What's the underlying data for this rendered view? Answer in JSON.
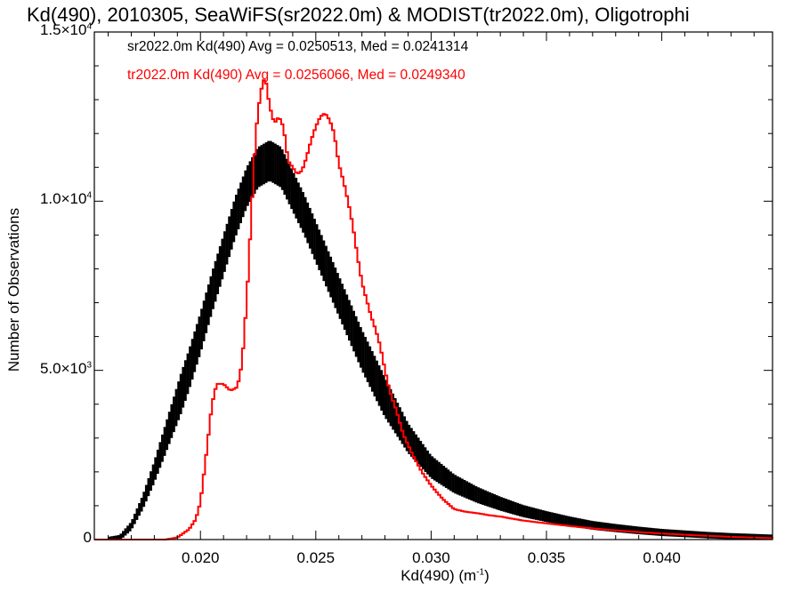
{
  "chart_data": {
    "type": "histogram",
    "title": "Kd(490), 2010305, SeaWiFS(sr2022.0m) & MODIST(tr2022.0m), Oligotrophi",
    "xlabel": "Kd(490) (m",
    "xlabel_sup": "-1",
    "xlabel_close": ")",
    "ylabel": "Number of Observations",
    "xlim": [
      0.0154,
      0.0448
    ],
    "ylim": [
      0,
      15000
    ],
    "x_ticks": [
      "0.020",
      "0.025",
      "0.030",
      "0.035",
      "0.040"
    ],
    "x_tick_values": [
      0.02,
      0.025,
      0.03,
      0.035,
      0.04
    ],
    "y_ticks": [
      {
        "value": 0,
        "mant": "0",
        "exp": ""
      },
      {
        "value": 5000,
        "mant": "5.0×10",
        "exp": "3"
      },
      {
        "value": 10000,
        "mant": "1.0×10",
        "exp": "4"
      },
      {
        "value": 15000,
        "mant": "1.5×10",
        "exp": "4"
      }
    ],
    "series": [
      {
        "name": "sr2022.0m",
        "legend": "sr2022.0m Kd(490) Avg = 0.0250513, Med = 0.0241314",
        "color": "#000000",
        "x": [
          0.0154,
          0.016,
          0.0165,
          0.017,
          0.0175,
          0.018,
          0.0185,
          0.019,
          0.0195,
          0.02,
          0.0205,
          0.021,
          0.0215,
          0.022,
          0.0225,
          0.023,
          0.0235,
          0.024,
          0.0245,
          0.025,
          0.0255,
          0.026,
          0.0265,
          0.027,
          0.0275,
          0.028,
          0.0285,
          0.029,
          0.03,
          0.031,
          0.032,
          0.033,
          0.034,
          0.035,
          0.036,
          0.037,
          0.038,
          0.039,
          0.04,
          0.041,
          0.042,
          0.043,
          0.0448
        ],
        "y": [
          0,
          0,
          50,
          400,
          1100,
          2000,
          3000,
          4000,
          5000,
          6100,
          7300,
          8400,
          9500,
          10400,
          11000,
          11200,
          11000,
          10300,
          9600,
          8800,
          8000,
          7200,
          6400,
          5600,
          4900,
          4200,
          3600,
          3000,
          2150,
          1650,
          1320,
          1060,
          840,
          680,
          540,
          420,
          340,
          270,
          210,
          170,
          130,
          100,
          60
        ],
        "half_height": 600
      },
      {
        "name": "tr2022.0m",
        "legend": "tr2022.0m Kd(490) Avg = 0.0256066, Med = 0.0249340",
        "color": "#ff0000",
        "x": [
          0.0154,
          0.017,
          0.0185,
          0.019,
          0.0195,
          0.0198,
          0.02,
          0.0202,
          0.0205,
          0.0207,
          0.021,
          0.0213,
          0.0216,
          0.0218,
          0.022,
          0.0222,
          0.0224,
          0.0226,
          0.0228,
          0.023,
          0.0232,
          0.0234,
          0.0236,
          0.0238,
          0.024,
          0.0242,
          0.0244,
          0.0246,
          0.0248,
          0.025,
          0.0252,
          0.0254,
          0.0256,
          0.0258,
          0.026,
          0.0262,
          0.0264,
          0.0266,
          0.0268,
          0.027,
          0.0272,
          0.0274,
          0.0276,
          0.0278,
          0.028,
          0.0282,
          0.0285,
          0.0288,
          0.0292,
          0.0296,
          0.03,
          0.0305,
          0.031,
          0.0315,
          0.032,
          0.0325,
          0.033,
          0.0335,
          0.034,
          0.035,
          0.036,
          0.037,
          0.038,
          0.039,
          0.04,
          0.041,
          0.042,
          0.043,
          0.0448
        ],
        "y": [
          0,
          0,
          0,
          60,
          300,
          600,
          1100,
          2200,
          4000,
          4600,
          4600,
          4400,
          4500,
          5200,
          7000,
          9500,
          12000,
          13200,
          13700,
          12800,
          12300,
          12500,
          12200,
          11200,
          11000,
          10800,
          10900,
          11300,
          11800,
          12200,
          12500,
          12600,
          12400,
          12000,
          11100,
          10600,
          10000,
          9300,
          8400,
          7600,
          7100,
          6600,
          6200,
          5700,
          5000,
          4400,
          3800,
          3100,
          2500,
          2000,
          1600,
          1200,
          900,
          820,
          780,
          720,
          680,
          620,
          560,
          480,
          400,
          330,
          270,
          220,
          180,
          140,
          110,
          80,
          40
        ]
      }
    ]
  }
}
